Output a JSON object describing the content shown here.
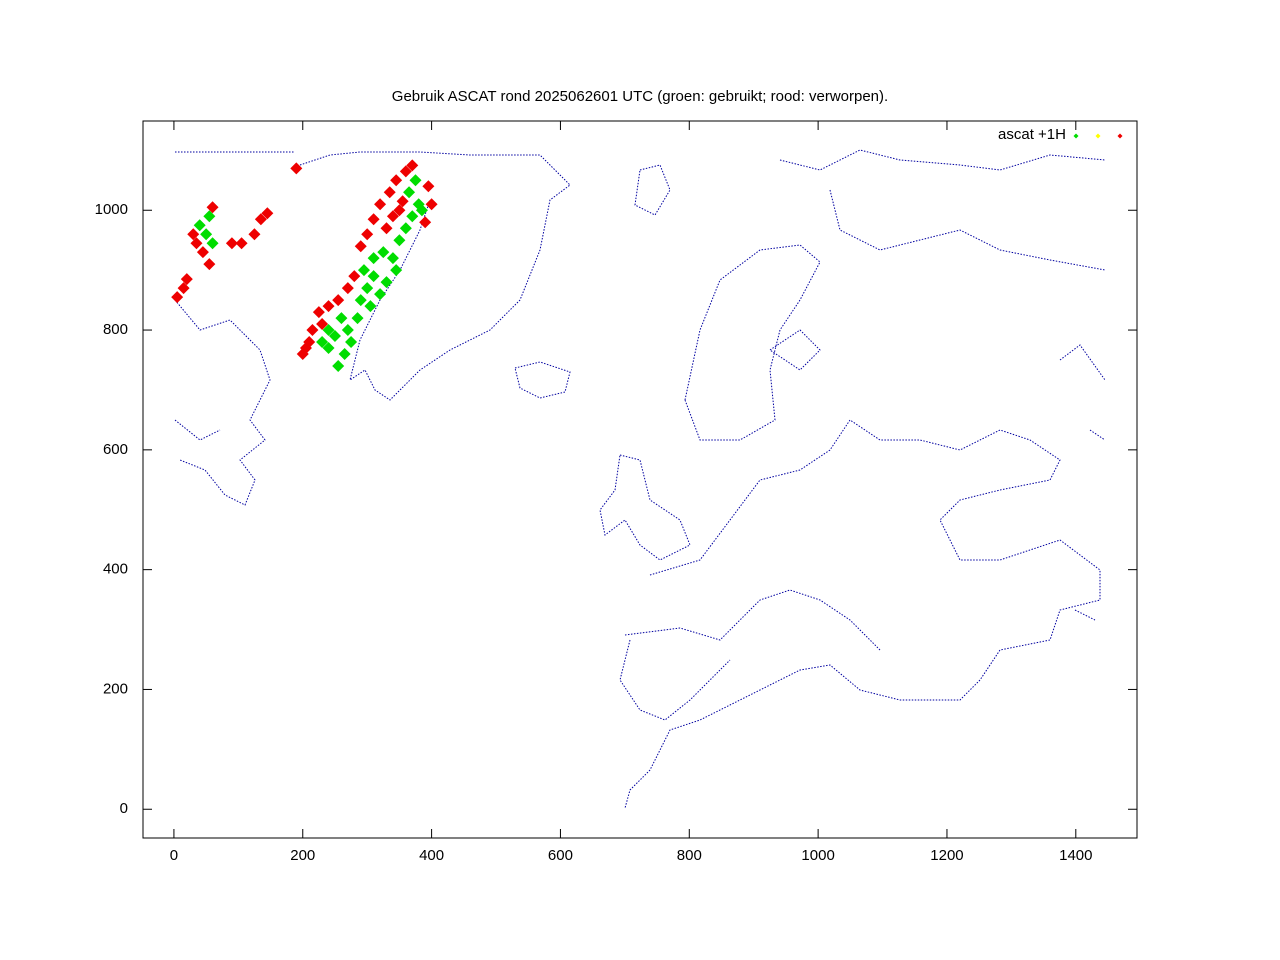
{
  "chart_data": {
    "type": "scatter",
    "title": "Gebruik ASCAT rond 2025062601 UTC (groen: gebruikt; rood: verworpen).",
    "xlim": [
      -48,
      1495
    ],
    "ylim": [
      -48,
      1149
    ],
    "xticks": [
      0,
      200,
      400,
      600,
      800,
      1000,
      1200,
      1400
    ],
    "yticks": [
      0,
      200,
      400,
      600,
      800,
      1000
    ],
    "legend": "top-right",
    "series": [
      {
        "name": "ascat +1H",
        "color": "#00dd00",
        "x": [
          255,
          265,
          240,
          250,
          270,
          285,
          260,
          240,
          230,
          275,
          290,
          300,
          310,
          320,
          305,
          330,
          340,
          325,
          350,
          360,
          370,
          380,
          365,
          375,
          385,
          345,
          310,
          295,
          50,
          55,
          40,
          60
        ],
        "values": [
          740,
          760,
          770,
          790,
          800,
          820,
          820,
          800,
          780,
          780,
          850,
          870,
          890,
          860,
          840,
          880,
          920,
          930,
          950,
          970,
          990,
          1010,
          1030,
          1050,
          1000,
          900,
          920,
          900,
          960,
          990,
          975,
          945
        ]
      },
      {
        "color": "#ffff00",
        "x": [],
        "values": []
      },
      {
        "color": "#ee0000",
        "x": [
          200,
          210,
          215,
          225,
          240,
          255,
          205,
          230,
          270,
          280,
          290,
          300,
          310,
          320,
          335,
          345,
          360,
          370,
          340,
          330,
          350,
          355,
          390,
          400,
          395,
          30,
          35,
          45,
          55,
          60,
          90,
          105,
          125,
          135,
          145,
          15,
          20,
          5,
          190
        ],
        "values": [
          760,
          780,
          800,
          830,
          840,
          850,
          770,
          810,
          870,
          890,
          940,
          960,
          985,
          1010,
          1030,
          1050,
          1065,
          1075,
          990,
          970,
          1000,
          1015,
          980,
          1010,
          1040,
          960,
          945,
          930,
          910,
          1005,
          945,
          945,
          960,
          985,
          995,
          870,
          885,
          855,
          1070
        ]
      }
    ]
  }
}
